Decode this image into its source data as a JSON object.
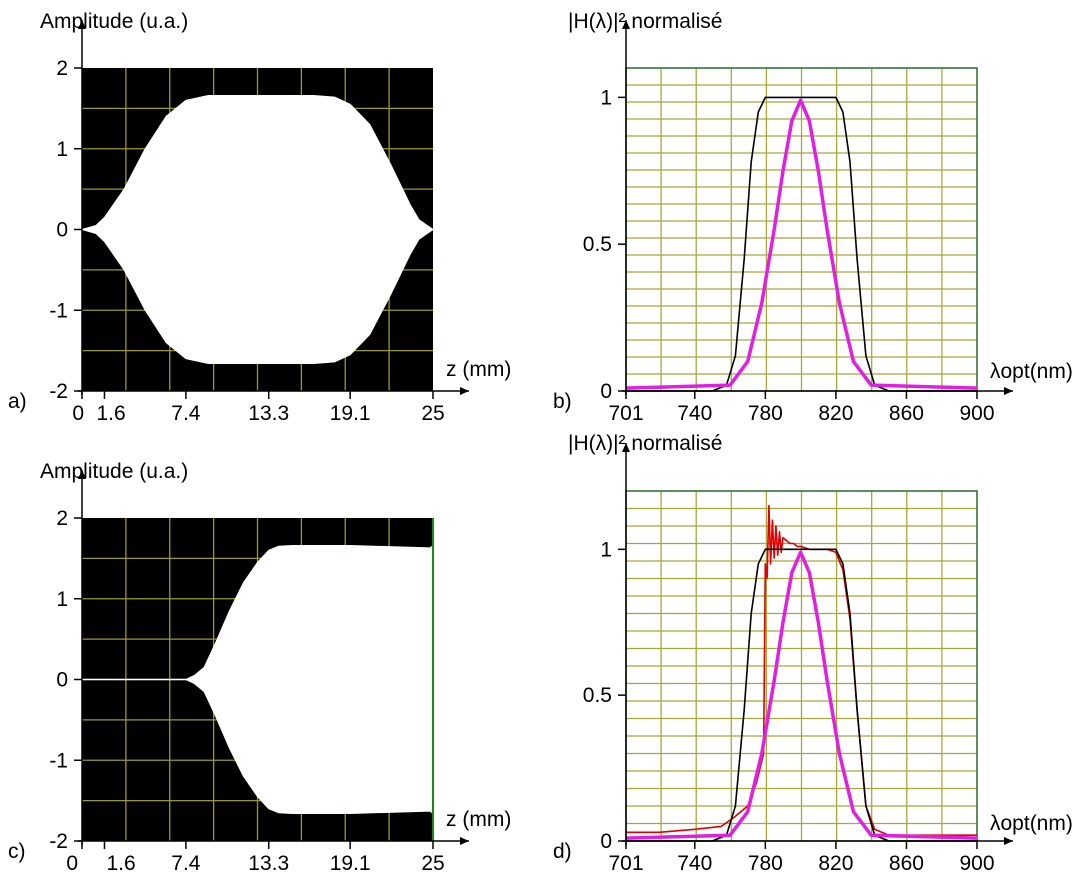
{
  "chart_data": [
    {
      "id": "a",
      "type": "area",
      "panel_letter": "a)",
      "ylabel": "Amplitude (u.a.)",
      "xlabel": "z (mm)",
      "xlim": [
        0,
        25
      ],
      "ylim": [
        -2,
        2
      ],
      "xticks": [
        "0",
        "1.6",
        "7.4",
        "13.3",
        "19.1",
        "25"
      ],
      "yticks": [
        "-2",
        "-1",
        "0",
        "1",
        "2"
      ],
      "background": "#000000",
      "fill_color": "#ffffff",
      "grid_color": "#9a9a2a",
      "grid": true,
      "envelope": {
        "z": [
          0,
          1,
          1.6,
          3,
          4.5,
          6,
          7.4,
          9,
          10,
          13.3,
          16.5,
          18,
          19.1,
          20.5,
          22,
          23.4,
          24,
          25
        ],
        "amplitude": [
          0,
          0.05,
          0.15,
          0.5,
          1.0,
          1.4,
          1.6,
          1.66,
          1.66,
          1.66,
          1.66,
          1.64,
          1.55,
          1.3,
          0.8,
          0.3,
          0.12,
          0
        ]
      }
    },
    {
      "id": "b",
      "type": "line",
      "panel_letter": "b)",
      "ylabel": "|H(λ)|² normalisé",
      "xlabel": "λopt(nm)",
      "xlim": [
        701,
        900
      ],
      "ylim": [
        0,
        1.1
      ],
      "xticks": [
        "701",
        "740",
        "780",
        "820",
        "860",
        "900"
      ],
      "yticks": [
        "0",
        "0.5",
        "1"
      ],
      "background": "#ffffff",
      "grid_color": "#a8a83a",
      "grid": true,
      "series": [
        {
          "color": "#000000",
          "x": [
            701,
            750,
            758,
            763,
            768,
            772,
            776,
            780,
            800,
            820,
            824,
            828,
            832,
            837,
            842,
            850,
            900
          ],
          "y": [
            0,
            0,
            0.02,
            0.12,
            0.45,
            0.78,
            0.95,
            1.0,
            1.0,
            1.0,
            0.95,
            0.78,
            0.45,
            0.12,
            0.02,
            0,
            0
          ]
        },
        {
          "color": "#e020e0",
          "x": [
            701,
            760,
            770,
            778,
            785,
            790,
            795,
            800,
            805,
            810,
            815,
            822,
            830,
            840,
            900
          ],
          "y": [
            0.01,
            0.02,
            0.1,
            0.3,
            0.55,
            0.75,
            0.92,
            0.99,
            0.92,
            0.75,
            0.55,
            0.3,
            0.1,
            0.02,
            0.01
          ]
        }
      ]
    },
    {
      "id": "c",
      "type": "area",
      "panel_letter": "c)",
      "ylabel": "Amplitude (u.a.)",
      "xlabel": "z (mm)",
      "xlim": [
        0,
        25
      ],
      "ylim": [
        -2,
        2
      ],
      "xticks": [
        "0",
        "1.6",
        "7.4",
        "13.3",
        "19.1",
        "25"
      ],
      "yticks": [
        "-2",
        "-1",
        "0",
        "1",
        "2"
      ],
      "background": "#000000",
      "fill_color": "#ffffff",
      "grid_color": "#9a9a2a",
      "grid": true,
      "envelope": {
        "z": [
          0,
          7.4,
          8,
          8.7,
          9.5,
          10.5,
          11.5,
          12.5,
          13.3,
          14,
          15,
          19.1,
          24.8,
          25
        ],
        "amplitude": [
          0,
          0,
          0.05,
          0.15,
          0.45,
          0.85,
          1.2,
          1.45,
          1.6,
          1.65,
          1.66,
          1.66,
          1.63,
          1.66
        ]
      }
    },
    {
      "id": "d",
      "type": "line",
      "panel_letter": "d)",
      "ylabel": "|H(λ)|² normalisé",
      "xlabel": "λopt(nm)",
      "xlim": [
        701,
        900
      ],
      "ylim": [
        0,
        1.2
      ],
      "xticks": [
        "701",
        "740",
        "780",
        "820",
        "860",
        "900"
      ],
      "yticks": [
        "0",
        "0.5",
        "1"
      ],
      "background": "#ffffff",
      "grid_color": "#a8a83a",
      "grid": true,
      "series": [
        {
          "color": "#e00000",
          "x": [
            701,
            720,
            740,
            755,
            762,
            770,
            775,
            779,
            780,
            781,
            782,
            783,
            784,
            785,
            786,
            787,
            788,
            789,
            790,
            792,
            794,
            796,
            798,
            800,
            805,
            810,
            815,
            820,
            824,
            828,
            832,
            837,
            842,
            850,
            870,
            900
          ],
          "y": [
            0.03,
            0.03,
            0.04,
            0.05,
            0.08,
            0.12,
            0.2,
            0.3,
            0.95,
            0.9,
            1.15,
            0.95,
            1.1,
            0.97,
            1.08,
            0.98,
            1.06,
            0.99,
            1.04,
            1.03,
            1.02,
            1.02,
            1.01,
            1.01,
            1.0,
            1.0,
            1.0,
            0.99,
            0.93,
            0.76,
            0.45,
            0.12,
            0.04,
            0.02,
            0.02,
            0.02
          ]
        },
        {
          "color": "#000000",
          "x": [
            701,
            750,
            758,
            763,
            768,
            772,
            776,
            780,
            800,
            820,
            824,
            828,
            832,
            837,
            842,
            850,
            900
          ],
          "y": [
            0,
            0,
            0.02,
            0.12,
            0.45,
            0.78,
            0.95,
            1.0,
            1.0,
            1.0,
            0.95,
            0.78,
            0.45,
            0.12,
            0.02,
            0,
            0
          ]
        },
        {
          "color": "#e020e0",
          "x": [
            701,
            760,
            770,
            778,
            785,
            790,
            795,
            800,
            805,
            810,
            815,
            822,
            830,
            840,
            900
          ],
          "y": [
            0.01,
            0.02,
            0.1,
            0.3,
            0.55,
            0.75,
            0.92,
            0.99,
            0.92,
            0.75,
            0.55,
            0.3,
            0.1,
            0.02,
            0.01
          ]
        }
      ]
    }
  ]
}
